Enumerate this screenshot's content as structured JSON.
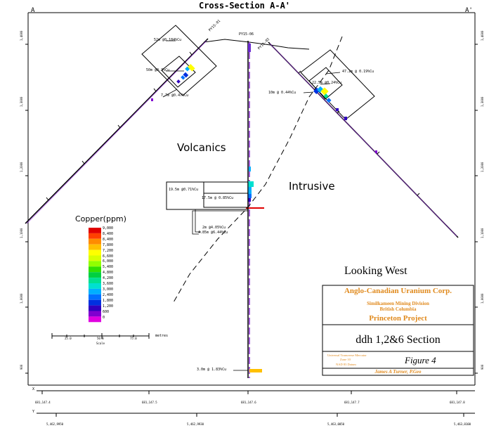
{
  "title": "Cross-Section A-A'",
  "corner_left": "A",
  "corner_right": "A'",
  "holes": {
    "left": "PY15-01",
    "center": "PY15-06",
    "right": "PY15-02"
  },
  "units": {
    "volcanics": "Volcanics",
    "intrusive": "Intrusive"
  },
  "intercepts": {
    "l1": "52m @0.184%Cu",
    "l2": "50m @0.3%Cu",
    "l3": "7.7m @0.47%Cu",
    "r1": "47.2m @ 0.19%Cu",
    "r2": "22.5m @0.24%Cu",
    "r3": "10m @ 0.44%Cu",
    "c1": "19.5m @0.71%Cu",
    "c2": "17.5m @ 0.85%Cu",
    "c3": "2m @4.05%Cu",
    "c4": "4.85m @6.44%Cu",
    "c5": "3.0m @ 1.83%Cu"
  },
  "legend": {
    "title": "Copper(ppm)",
    "items": [
      {
        "label": "9,000",
        "color": "#e00000"
      },
      {
        "label": "8,400",
        "color": "#ff4000"
      },
      {
        "label": "8,400",
        "color": "#ff8c00"
      },
      {
        "label": "7,800",
        "color": "#ffc000"
      },
      {
        "label": "7,200",
        "color": "#ffff00"
      },
      {
        "label": "6,600",
        "color": "#d8ff00"
      },
      {
        "label": "6,000",
        "color": "#90ff00"
      },
      {
        "label": "5,400",
        "color": "#30e000"
      },
      {
        "label": "4,800",
        "color": "#00d040"
      },
      {
        "label": "4,200",
        "color": "#00e090"
      },
      {
        "label": "3,600",
        "color": "#00e0d0"
      },
      {
        "label": "3,000",
        "color": "#00b0ff"
      },
      {
        "label": "2,400",
        "color": "#0070ff"
      },
      {
        "label": "1,800",
        "color": "#0030e0"
      },
      {
        "label": "1,200",
        "color": "#3000c0"
      },
      {
        "label": "600",
        "color": "#8000d0"
      },
      {
        "label": "0",
        "color": "#e000e0"
      }
    ]
  },
  "scale": {
    "ticks": [
      "25.0",
      "50.0",
      "75.0"
    ],
    "unit": "metres",
    "caption": "Scale"
  },
  "looking": "Looking West",
  "title_block": {
    "company": "Anglo-Canadian Uranium Corp.",
    "division": "Similkameen Mining Division",
    "province": "British Columbia",
    "project": "Princeton Project",
    "section": "ddh 1,2&6 Section",
    "projection": "Universal Transverse Mercator",
    "zone": "Zone 10",
    "datum": "NAD 83 Datum",
    "figure": "Figure 4",
    "author": "James A Turner, P.Geo"
  },
  "bottom_axis": {
    "x_label": "X",
    "y_label": "Y",
    "x_ticks": [
      "681,147.4",
      "681,147.5",
      "681,147.6",
      "681,147.7",
      "681,147.8"
    ],
    "y_ticks": [
      "5,462,9950",
      "5,462,9930",
      "5,463,0050",
      "5,463,0100"
    ]
  },
  "side_ticks": [
    "1,4000",
    "1,3000",
    "1,2000",
    "1,1000",
    "1,0000",
    "900"
  ],
  "colors": {
    "orange": "#e08a1e",
    "trace": "#6a2bd0"
  }
}
